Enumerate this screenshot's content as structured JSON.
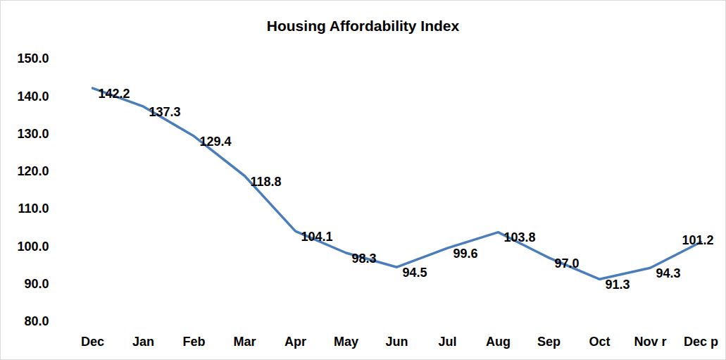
{
  "chart_data": {
    "type": "line",
    "title": "Housing Affordability Index",
    "categories": [
      "Dec",
      "Jan",
      "Feb",
      "Mar",
      "Apr",
      "May",
      "Jun",
      "Jul",
      "Aug",
      "Sep",
      "Oct",
      "Nov r",
      "Dec p"
    ],
    "values": [
      142.2,
      137.3,
      129.4,
      118.8,
      104.1,
      98.3,
      94.5,
      99.6,
      103.8,
      97.0,
      91.3,
      94.3,
      101.2
    ],
    "value_labels": [
      "142.2",
      "137.3",
      "129.4",
      "118.8",
      "104.1",
      "98.3",
      "94.5",
      "99.6",
      "103.8",
      "97.0",
      "91.3",
      "94.3",
      "101.2"
    ],
    "color": "#4a7ebb",
    "ylim": [
      80,
      150
    ],
    "yticks": [
      {
        "value": 80,
        "label": "80.0"
      },
      {
        "value": 90,
        "label": "90.0"
      },
      {
        "value": 100,
        "label": "100.0"
      },
      {
        "value": 110,
        "label": "110.0"
      },
      {
        "value": 120,
        "label": "120.0"
      },
      {
        "value": 130,
        "label": "130.0"
      },
      {
        "value": 140,
        "label": "140.0"
      },
      {
        "value": 150,
        "label": "150.0"
      }
    ],
    "grid": false,
    "data_labels": true
  }
}
